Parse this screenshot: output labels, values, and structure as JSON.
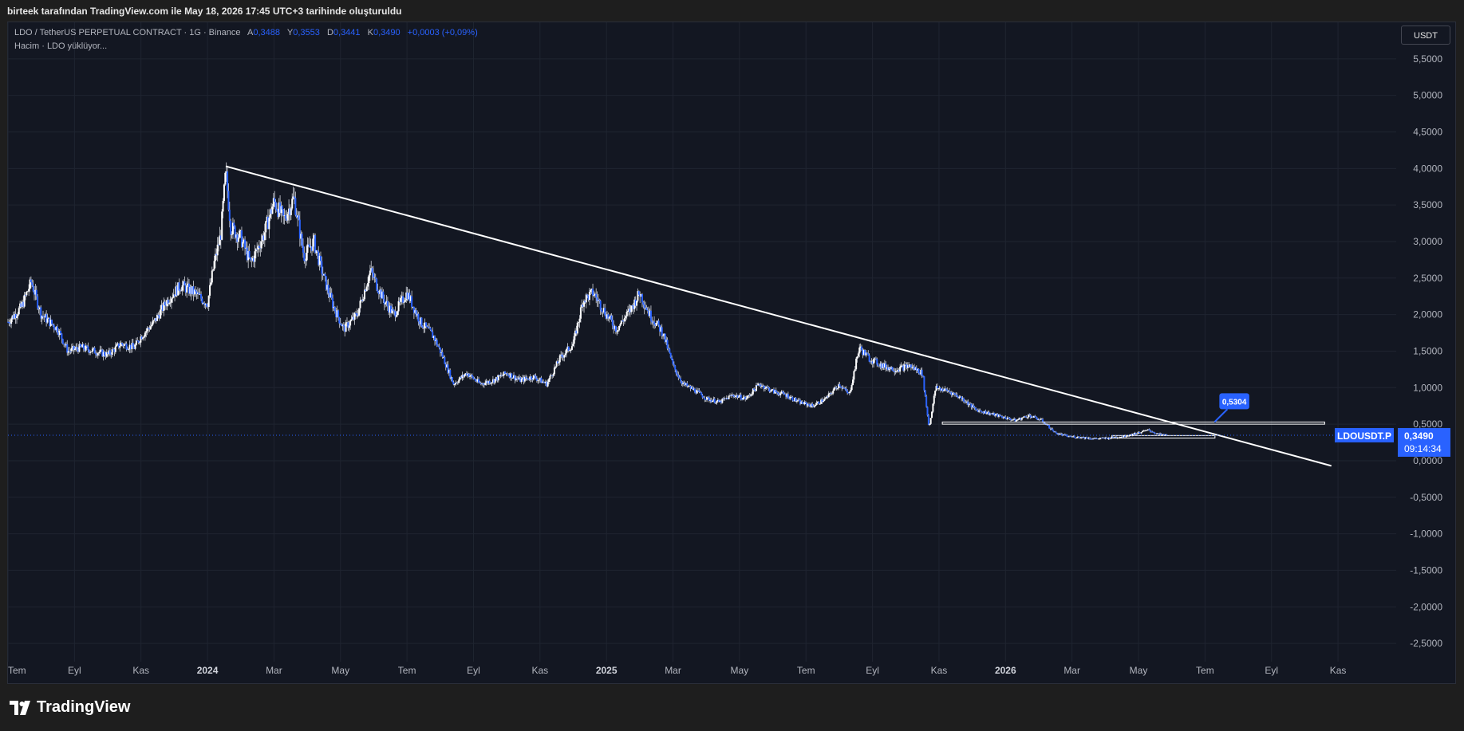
{
  "caption": "birteek tarafından TradingView.com ile May 18, 2026 17:45 UTC+3 tarihinde oluşturuldu",
  "legend": {
    "symbol": "LDO / TetherUS PERPETUAL CONTRACT · 1G · Binance",
    "open_key": "A",
    "open": "0,3488",
    "high_key": "Y",
    "high": "0,3553",
    "low_key": "D",
    "low": "0,3441",
    "close_key": "K",
    "close": "0,3490",
    "change": "+0,0003 (+0,09%)",
    "volume_line": "Hacim · LDO yüklüyor..."
  },
  "currency_button": "USDT",
  "branding": "TradingView",
  "colors": {
    "background": "#131722",
    "candles": "#ffffff",
    "accent": "#2962ff",
    "grid": "#1f2430",
    "trendline": "#ffffff"
  },
  "chart_data": {
    "type": "candlestick",
    "symbol_label": "LDOUSDT.P",
    "last_price": "0,3490",
    "countdown": "09:14:34",
    "annotation_label": "0,5304",
    "y_ticks": [
      "5,5000",
      "5,0000",
      "4,5000",
      "4,0000",
      "3,5000",
      "3,0000",
      "2,5000",
      "2,0000",
      "1,5000",
      "1,0000",
      "0,5000",
      "0,0000",
      "-0,5000",
      "-1,0000",
      "-1,5000",
      "-2,0000",
      "-2,5000"
    ],
    "y_tick_values": [
      5.5,
      5.0,
      4.5,
      4.0,
      3.5,
      3.0,
      2.5,
      2.0,
      1.5,
      1.0,
      0.5,
      0.0,
      -0.5,
      -1.0,
      -1.5,
      -2.0,
      -2.5
    ],
    "ylim": [
      -2.75,
      6.0
    ],
    "x_ticks": [
      {
        "label": "Tem",
        "t": 0.0,
        "bold": false
      },
      {
        "label": "Eyl",
        "t": 2.0,
        "bold": false
      },
      {
        "label": "Kas",
        "t": 4.0,
        "bold": false
      },
      {
        "label": "2024",
        "t": 6.0,
        "bold": true
      },
      {
        "label": "Mar",
        "t": 8.0,
        "bold": false
      },
      {
        "label": "May",
        "t": 10.0,
        "bold": false
      },
      {
        "label": "Tem",
        "t": 12.0,
        "bold": false
      },
      {
        "label": "Eyl",
        "t": 14.0,
        "bold": false
      },
      {
        "label": "Kas",
        "t": 16.0,
        "bold": false
      },
      {
        "label": "2025",
        "t": 18.0,
        "bold": true
      },
      {
        "label": "Mar",
        "t": 20.0,
        "bold": false
      },
      {
        "label": "May",
        "t": 22.0,
        "bold": false
      },
      {
        "label": "Tem",
        "t": 24.0,
        "bold": false
      },
      {
        "label": "Eyl",
        "t": 26.0,
        "bold": false
      },
      {
        "label": "Kas",
        "t": 28.0,
        "bold": false
      },
      {
        "label": "2026",
        "t": 30.0,
        "bold": true
      },
      {
        "label": "Mar",
        "t": 32.0,
        "bold": false
      },
      {
        "label": "May",
        "t": 34.0,
        "bold": false
      },
      {
        "label": "Tem",
        "t": 36.0,
        "bold": false
      },
      {
        "label": "Eyl",
        "t": 38.0,
        "bold": false
      },
      {
        "label": "Kas",
        "t": 40.0,
        "bold": false
      }
    ],
    "xlim_months": [
      0.0,
      41.75
    ],
    "price_path_months": [
      [
        0.0,
        1.9
      ],
      [
        0.4,
        2.1
      ],
      [
        0.7,
        2.45
      ],
      [
        1.0,
        2.0
      ],
      [
        1.5,
        1.8
      ],
      [
        1.8,
        1.5
      ],
      [
        2.2,
        1.55
      ],
      [
        2.6,
        1.5
      ],
      [
        3.0,
        1.45
      ],
      [
        3.4,
        1.6
      ],
      [
        3.8,
        1.55
      ],
      [
        4.0,
        1.7
      ],
      [
        4.4,
        1.9
      ],
      [
        4.8,
        2.2
      ],
      [
        5.2,
        2.4
      ],
      [
        5.6,
        2.3
      ],
      [
        6.0,
        2.15
      ],
      [
        6.2,
        2.7
      ],
      [
        6.4,
        3.1
      ],
      [
        6.55,
        3.95
      ],
      [
        6.7,
        3.2
      ],
      [
        7.0,
        3.05
      ],
      [
        7.3,
        2.7
      ],
      [
        7.7,
        3.1
      ],
      [
        8.0,
        3.55
      ],
      [
        8.3,
        3.3
      ],
      [
        8.6,
        3.6
      ],
      [
        8.9,
        2.8
      ],
      [
        9.2,
        3.0
      ],
      [
        9.5,
        2.5
      ],
      [
        9.8,
        2.1
      ],
      [
        10.1,
        1.8
      ],
      [
        10.5,
        2.0
      ],
      [
        10.9,
        2.6
      ],
      [
        11.3,
        2.2
      ],
      [
        11.6,
        2.0
      ],
      [
        12.0,
        2.3
      ],
      [
        12.4,
        1.9
      ],
      [
        12.8,
        1.7
      ],
      [
        13.1,
        1.4
      ],
      [
        13.4,
        1.05
      ],
      [
        13.8,
        1.2
      ],
      [
        14.2,
        1.05
      ],
      [
        14.6,
        1.1
      ],
      [
        15.0,
        1.2
      ],
      [
        15.4,
        1.1
      ],
      [
        15.8,
        1.15
      ],
      [
        16.2,
        1.05
      ],
      [
        16.6,
        1.4
      ],
      [
        17.0,
        1.6
      ],
      [
        17.3,
        2.2
      ],
      [
        17.6,
        2.3
      ],
      [
        18.0,
        2.0
      ],
      [
        18.3,
        1.8
      ],
      [
        18.7,
        2.05
      ],
      [
        19.0,
        2.3
      ],
      [
        19.3,
        2.0
      ],
      [
        19.7,
        1.75
      ],
      [
        20.0,
        1.3
      ],
      [
        20.3,
        1.05
      ],
      [
        20.7,
        0.95
      ],
      [
        21.0,
        0.85
      ],
      [
        21.4,
        0.8
      ],
      [
        21.8,
        0.9
      ],
      [
        22.2,
        0.85
      ],
      [
        22.6,
        1.05
      ],
      [
        23.0,
        0.95
      ],
      [
        23.4,
        0.9
      ],
      [
        23.8,
        0.8
      ],
      [
        24.2,
        0.75
      ],
      [
        24.6,
        0.85
      ],
      [
        25.0,
        1.05
      ],
      [
        25.3,
        0.9
      ],
      [
        25.6,
        1.55
      ],
      [
        25.9,
        1.4
      ],
      [
        26.3,
        1.3
      ],
      [
        26.7,
        1.25
      ],
      [
        27.1,
        1.3
      ],
      [
        27.5,
        1.2
      ],
      [
        27.7,
        0.45
      ],
      [
        27.9,
        1.0
      ],
      [
        28.3,
        0.95
      ],
      [
        28.7,
        0.85
      ],
      [
        29.1,
        0.7
      ],
      [
        29.5,
        0.65
      ],
      [
        29.9,
        0.6
      ],
      [
        30.3,
        0.55
      ],
      [
        30.7,
        0.62
      ],
      [
        31.1,
        0.55
      ],
      [
        31.5,
        0.38
      ],
      [
        31.9,
        0.33
      ],
      [
        32.3,
        0.32
      ],
      [
        32.7,
        0.3
      ],
      [
        33.1,
        0.31
      ],
      [
        33.5,
        0.33
      ],
      [
        33.9,
        0.37
      ],
      [
        34.3,
        0.42
      ],
      [
        34.6,
        0.36
      ],
      [
        34.85,
        0.349
      ]
    ],
    "trendline": {
      "start": [
        6.55,
        4.03
      ],
      "end": [
        39.8,
        -0.07
      ]
    },
    "range_box": {
      "x0": 28.1,
      "x1": 39.6,
      "y_top": 0.53,
      "y_bottom": 0.5
    },
    "range_box_lower": {
      "x0": 33.2,
      "x1": 36.3,
      "y_top": 0.345,
      "y_bottom": 0.31
    },
    "annotation_point": [
      36.0,
      0.53
    ],
    "annotation_box_t": [
      36.0,
      36.9
    ]
  }
}
